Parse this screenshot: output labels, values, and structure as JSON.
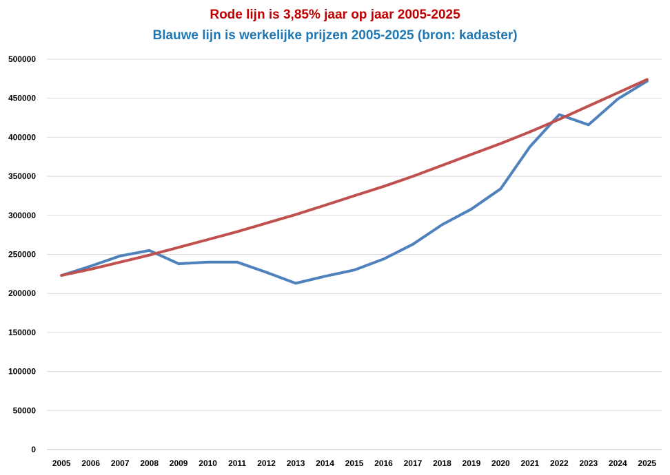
{
  "chart_data": {
    "type": "line",
    "title": "Rode lijn is 3,85% jaar op jaar 2005-2025",
    "subtitle": "Blauwe lijn is werkelijke prijzen 2005-2025 (bron: kadaster)",
    "title_color": "#c00000",
    "subtitle_color": "#1f78b4",
    "xlabel": "",
    "ylabel": "",
    "ylim": [
      0,
      500000
    ],
    "yticks": [
      0,
      50000,
      100000,
      150000,
      200000,
      250000,
      300000,
      350000,
      400000,
      450000,
      500000
    ],
    "grid": true,
    "categories": [
      "2005",
      "2006",
      "2007",
      "2008",
      "2009",
      "2010",
      "2011",
      "2012",
      "2013",
      "2014",
      "2015",
      "2016",
      "2017",
      "2018",
      "2019",
      "2020",
      "2021",
      "2022",
      "2023",
      "2024",
      "2025"
    ],
    "series": [
      {
        "color": "#4f81bd",
        "values": [
          223000,
          235000,
          248000,
          255000,
          238000,
          240000,
          240000,
          227000,
          213000,
          222000,
          230000,
          244000,
          263000,
          288000,
          308000,
          334000,
          388000,
          429000,
          416000,
          449000,
          472000
        ]
      },
      {
        "color": "#c0504d",
        "values": [
          223000,
          231000,
          240000,
          249000,
          259000,
          269000,
          279000,
          290000,
          301000,
          313000,
          325000,
          337000,
          350000,
          364000,
          378000,
          392000,
          407000,
          423000,
          440000,
          457000,
          474000
        ]
      }
    ]
  }
}
